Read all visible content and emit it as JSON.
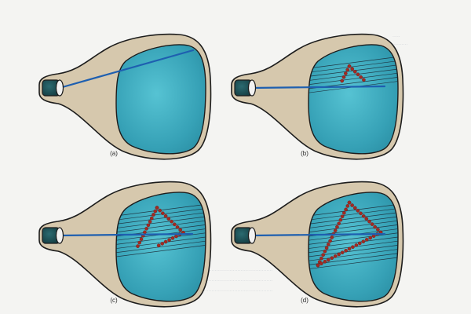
{
  "figure": {
    "panels": [
      {
        "label": "(a)",
        "triangle_progress": 0.0,
        "scan_lines": 0
      },
      {
        "label": "(b)",
        "triangle_progress": 0.35,
        "scan_lines": 7
      },
      {
        "label": "(c)",
        "triangle_progress": 0.7,
        "scan_lines": 11
      },
      {
        "label": "(d)",
        "triangle_progress": 1.0,
        "scan_lines": 14
      }
    ],
    "colors": {
      "background": "#f4f4f2",
      "tube_body": "#d6c8ad",
      "tube_outline": "#1c1c1c",
      "screen": "#3aa6b9",
      "beam": "#1e5fb0",
      "gun": "#1d4f55",
      "dots": "#a32a22",
      "scan_lines": "#1a2430"
    }
  }
}
